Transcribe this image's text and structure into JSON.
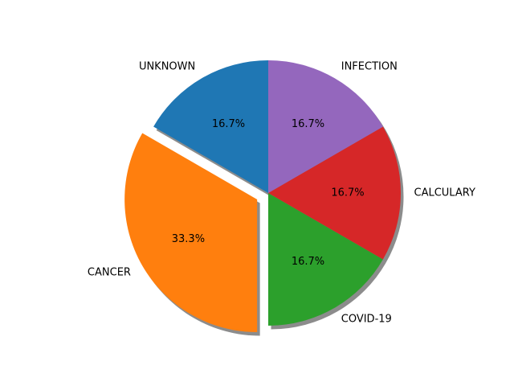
{
  "chart_data": {
    "type": "pie",
    "title": "",
    "slices": [
      {
        "label": "UNKNOWN",
        "value": 1,
        "pct_label": "16.7%",
        "color": "#1f77b4",
        "exploded": false
      },
      {
        "label": "CANCER",
        "value": 2,
        "pct_label": "33.3%",
        "color": "#ff7f0e",
        "exploded": true
      },
      {
        "label": "COVID-19",
        "value": 1,
        "pct_label": "16.7%",
        "color": "#2ca02c",
        "exploded": false
      },
      {
        "label": "CALCULARY",
        "value": 1,
        "pct_label": "16.7%",
        "color": "#d62728",
        "exploded": false
      },
      {
        "label": "INFECTION",
        "value": 1,
        "pct_label": "16.7%",
        "color": "#9467bd",
        "exploded": false
      }
    ],
    "start_angle_deg": 90,
    "direction": "counterclockwise",
    "shadow": true,
    "legend": "none"
  }
}
